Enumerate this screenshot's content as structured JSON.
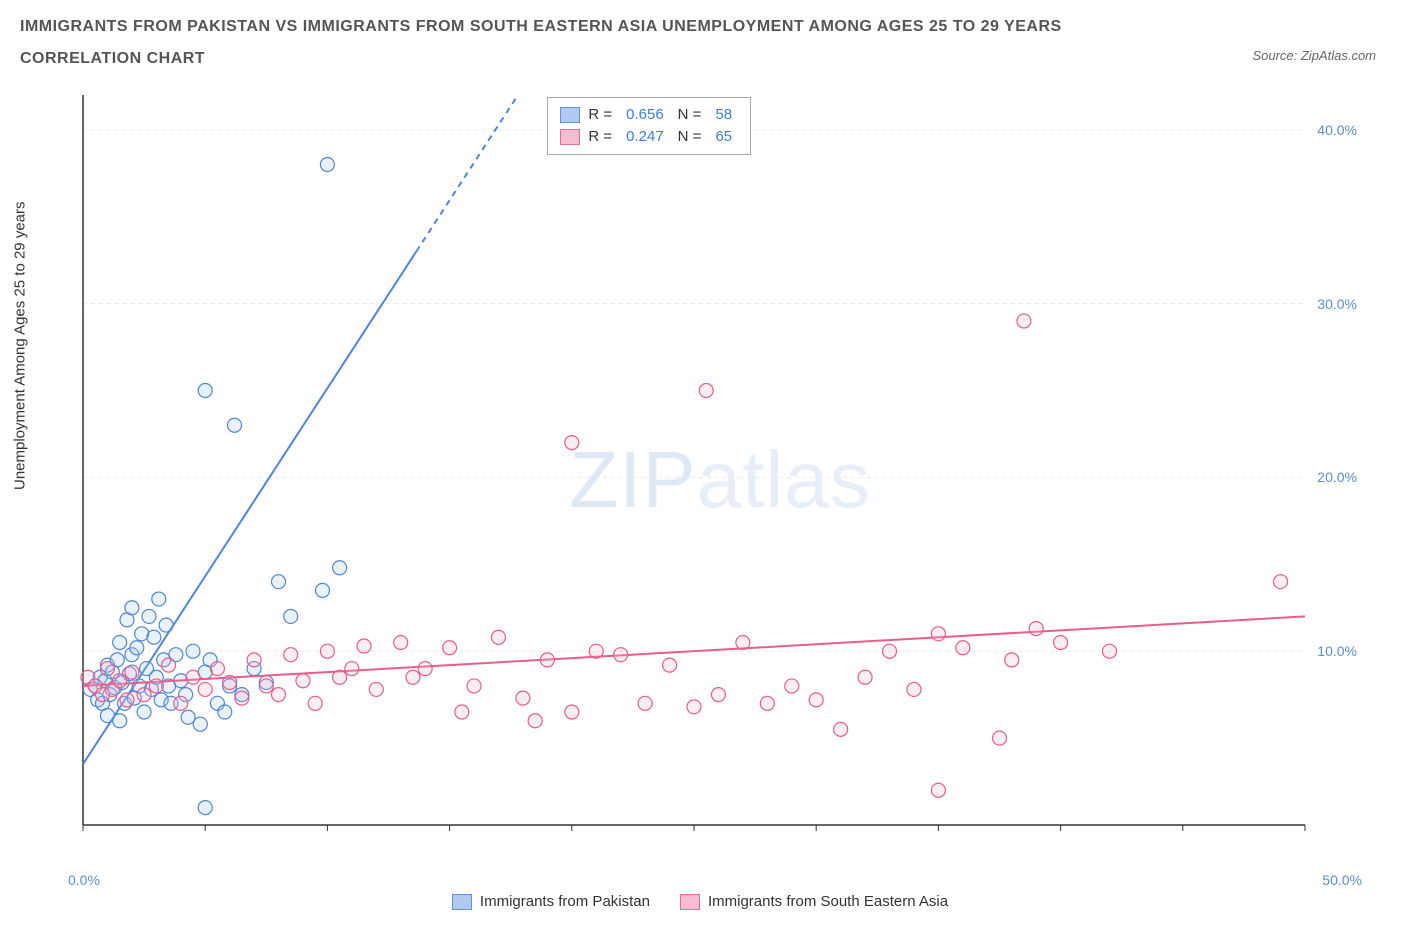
{
  "title_line1": "IMMIGRANTS FROM PAKISTAN VS IMMIGRANTS FROM SOUTH EASTERN ASIA UNEMPLOYMENT AMONG AGES 25 TO 29 YEARS",
  "title_line2": "CORRELATION CHART",
  "source_label": "Source: ZipAtlas.com",
  "ylabel": "Unemployment Among Ages 25 to 29 years",
  "watermark_a": "ZIP",
  "watermark_b": "atlas",
  "chart": {
    "type": "scatter",
    "xlim": [
      0,
      50
    ],
    "ylim": [
      0,
      42
    ],
    "x_ticks": [
      0,
      5,
      10,
      15,
      20,
      25,
      30,
      35,
      40,
      45,
      50
    ],
    "x_tick_labels_shown": {
      "first": "0.0%",
      "last": "50.0%"
    },
    "y_gridlines": [
      10,
      20,
      30,
      40
    ],
    "y_tick_labels": [
      "10.0%",
      "20.0%",
      "30.0%",
      "40.0%"
    ],
    "grid_color": "#e8e8e8",
    "axis_color": "#333333",
    "marker_radius": 7,
    "marker_stroke_width": 1.2,
    "marker_fill_opacity": 0.25,
    "line_width": 2,
    "series": [
      {
        "name": "Immigrants from Pakistan",
        "color_stroke": "#4f86d9",
        "color_fill": "#a9c6ef",
        "r": "0.656",
        "n": "58",
        "trend": {
          "x1": 0,
          "y1": 3.5,
          "x2": 17.8,
          "y2": 42,
          "dashed_from_y": 33
        },
        "points": [
          [
            0.3,
            7.8
          ],
          [
            0.5,
            8.0
          ],
          [
            0.6,
            7.2
          ],
          [
            0.7,
            8.5
          ],
          [
            0.8,
            7.0
          ],
          [
            0.9,
            8.3
          ],
          [
            1.0,
            9.2
          ],
          [
            1.0,
            6.3
          ],
          [
            1.1,
            7.5
          ],
          [
            1.2,
            8.8
          ],
          [
            1.3,
            7.9
          ],
          [
            1.4,
            9.5
          ],
          [
            1.5,
            6.0
          ],
          [
            1.5,
            10.5
          ],
          [
            1.6,
            8.2
          ],
          [
            1.7,
            7.0
          ],
          [
            1.8,
            11.8
          ],
          [
            1.9,
            8.7
          ],
          [
            2.0,
            9.8
          ],
          [
            2.0,
            12.5
          ],
          [
            2.1,
            7.3
          ],
          [
            2.2,
            10.2
          ],
          [
            2.3,
            8.0
          ],
          [
            2.4,
            11.0
          ],
          [
            2.5,
            6.5
          ],
          [
            2.6,
            9.0
          ],
          [
            2.7,
            12.0
          ],
          [
            2.8,
            7.8
          ],
          [
            2.9,
            10.8
          ],
          [
            3.0,
            8.5
          ],
          [
            3.1,
            13.0
          ],
          [
            3.2,
            7.2
          ],
          [
            3.3,
            9.5
          ],
          [
            3.4,
            11.5
          ],
          [
            3.5,
            8.0
          ],
          [
            3.6,
            7.0
          ],
          [
            3.8,
            9.8
          ],
          [
            4.0,
            8.3
          ],
          [
            4.2,
            7.5
          ],
          [
            4.3,
            6.2
          ],
          [
            4.5,
            10.0
          ],
          [
            4.8,
            5.8
          ],
          [
            5.0,
            8.8
          ],
          [
            5.2,
            9.5
          ],
          [
            5.5,
            7.0
          ],
          [
            5.8,
            6.5
          ],
          [
            6.0,
            8.0
          ],
          [
            6.5,
            7.5
          ],
          [
            7.0,
            9.0
          ],
          [
            7.5,
            8.2
          ],
          [
            8.0,
            14.0
          ],
          [
            8.5,
            12.0
          ],
          [
            9.8,
            13.5
          ],
          [
            10.5,
            14.8
          ],
          [
            6.2,
            23.0
          ],
          [
            5.0,
            25.0
          ],
          [
            10.0,
            38.0
          ],
          [
            5.0,
            1.0
          ]
        ]
      },
      {
        "name": "Immigrants from South Eastern Asia",
        "color_stroke": "#e85d8a",
        "color_fill": "#f5b8cb",
        "r": "0.247",
        "n": "65",
        "trend": {
          "x1": 0,
          "y1": 8.0,
          "x2": 50,
          "y2": 12.0,
          "dashed_from_y": 999
        },
        "points": [
          [
            0.2,
            8.5
          ],
          [
            0.5,
            8.0
          ],
          [
            0.8,
            7.5
          ],
          [
            1.0,
            9.0
          ],
          [
            1.2,
            7.8
          ],
          [
            1.5,
            8.3
          ],
          [
            1.8,
            7.2
          ],
          [
            2.0,
            8.8
          ],
          [
            2.5,
            7.5
          ],
          [
            3.0,
            8.0
          ],
          [
            3.5,
            9.2
          ],
          [
            4.0,
            7.0
          ],
          [
            4.5,
            8.5
          ],
          [
            5.0,
            7.8
          ],
          [
            5.5,
            9.0
          ],
          [
            6.0,
            8.2
          ],
          [
            6.5,
            7.3
          ],
          [
            7.0,
            9.5
          ],
          [
            7.5,
            8.0
          ],
          [
            8.0,
            7.5
          ],
          [
            8.5,
            9.8
          ],
          [
            9.0,
            8.3
          ],
          [
            9.5,
            7.0
          ],
          [
            10.0,
            10.0
          ],
          [
            10.5,
            8.5
          ],
          [
            11.5,
            10.3
          ],
          [
            12.0,
            7.8
          ],
          [
            13.0,
            10.5
          ],
          [
            14.0,
            9.0
          ],
          [
            15.0,
            10.2
          ],
          [
            16.0,
            8.0
          ],
          [
            17.0,
            10.8
          ],
          [
            18.0,
            7.3
          ],
          [
            18.5,
            6.0
          ],
          [
            19.0,
            9.5
          ],
          [
            20.0,
            6.5
          ],
          [
            21.0,
            10.0
          ],
          [
            22.0,
            9.8
          ],
          [
            23.0,
            7.0
          ],
          [
            24.0,
            9.2
          ],
          [
            25.0,
            6.8
          ],
          [
            26.0,
            7.5
          ],
          [
            27.0,
            10.5
          ],
          [
            28.0,
            7.0
          ],
          [
            29.0,
            8.0
          ],
          [
            30.0,
            7.2
          ],
          [
            31.0,
            5.5
          ],
          [
            32.0,
            8.5
          ],
          [
            33.0,
            10.0
          ],
          [
            34.0,
            7.8
          ],
          [
            35.0,
            11.0
          ],
          [
            36.0,
            10.2
          ],
          [
            37.5,
            5.0
          ],
          [
            38.0,
            9.5
          ],
          [
            39.0,
            11.3
          ],
          [
            40.0,
            10.5
          ],
          [
            42.0,
            10.0
          ],
          [
            20.0,
            22.0
          ],
          [
            25.5,
            25.0
          ],
          [
            38.5,
            29.0
          ],
          [
            35.0,
            2.0
          ],
          [
            49.0,
            14.0
          ],
          [
            11.0,
            9.0
          ],
          [
            13.5,
            8.5
          ],
          [
            15.5,
            6.5
          ]
        ]
      }
    ]
  },
  "legend": {
    "series_a": "Immigrants from Pakistan",
    "series_b": "Immigrants from South Eastern Asia"
  },
  "corr_box": {
    "r_label": "R =",
    "n_label": "N ="
  }
}
